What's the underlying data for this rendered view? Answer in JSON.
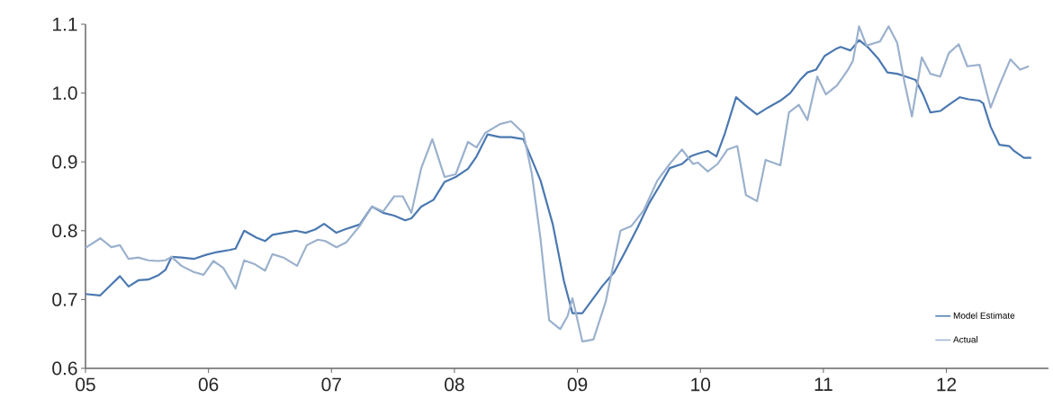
{
  "chart_data": {
    "type": "line",
    "xlim": [
      2005,
      2012.83
    ],
    "ylim": [
      0.6,
      1.1
    ],
    "xticks": [
      {
        "value": 2005,
        "label": "05"
      },
      {
        "value": 2006,
        "label": "06"
      },
      {
        "value": 2007,
        "label": "07"
      },
      {
        "value": 2008,
        "label": "08"
      },
      {
        "value": 2009,
        "label": "09"
      },
      {
        "value": 2010,
        "label": "10"
      },
      {
        "value": 2011,
        "label": "11"
      },
      {
        "value": 2012,
        "label": "12"
      }
    ],
    "yticks": [
      0.6,
      0.7,
      0.8,
      0.9,
      {
        "value": 1.0,
        "label": "1.0"
      },
      1.1
    ],
    "grid": false,
    "legend": "bottom right",
    "marker": "none",
    "line_style": "solid",
    "series": [
      {
        "name": "Model Estimate",
        "color": "#4a78b0",
        "x": [
          2005.0,
          2005.12,
          2005.2,
          2005.28,
          2005.35,
          2005.43,
          2005.51,
          2005.59,
          2005.65,
          2005.7,
          2005.78,
          2005.88,
          2005.98,
          2006.07,
          2006.17,
          2006.22,
          2006.29,
          2006.39,
          2006.46,
          2006.52,
          2006.61,
          2006.71,
          2006.79,
          2006.87,
          2006.94,
          2007.04,
          2007.11,
          2007.23,
          2007.33,
          2007.42,
          2007.51,
          2007.6,
          2007.65,
          2007.73,
          2007.83,
          2007.92,
          2008.01,
          2008.11,
          2008.18,
          2008.27,
          2008.37,
          2008.46,
          2008.56,
          2008.63,
          2008.7,
          2008.8,
          2008.89,
          2008.96,
          2009.04,
          2009.11,
          2009.2,
          2009.3,
          2009.39,
          2009.49,
          2009.58,
          2009.68,
          2009.75,
          2009.85,
          2009.92,
          2009.98,
          2010.06,
          2010.13,
          2010.2,
          2010.29,
          2010.36,
          2010.46,
          2010.55,
          2010.65,
          2010.73,
          2010.81,
          2010.87,
          2010.94,
          2011.01,
          2011.1,
          2011.14,
          2011.22,
          2011.29,
          2011.36,
          2011.45,
          2011.52,
          2011.6,
          2011.67,
          2011.75,
          2011.81,
          2011.87,
          2011.95,
          2012.02,
          2012.11,
          2012.18,
          2012.27,
          2012.3,
          2012.36,
          2012.43,
          2012.51,
          2012.55,
          2012.63,
          2012.69
        ],
        "values": [
          0.708,
          0.706,
          0.72,
          0.734,
          0.719,
          0.728,
          0.729,
          0.735,
          0.743,
          0.762,
          0.761,
          0.759,
          0.765,
          0.769,
          0.772,
          0.774,
          0.8,
          0.79,
          0.785,
          0.794,
          0.797,
          0.8,
          0.797,
          0.802,
          0.81,
          0.797,
          0.802,
          0.809,
          0.835,
          0.826,
          0.822,
          0.815,
          0.818,
          0.835,
          0.845,
          0.871,
          0.878,
          0.89,
          0.908,
          0.94,
          0.936,
          0.936,
          0.933,
          0.903,
          0.873,
          0.809,
          0.727,
          0.68,
          0.68,
          0.697,
          0.719,
          0.74,
          0.77,
          0.805,
          0.839,
          0.869,
          0.891,
          0.897,
          0.908,
          0.912,
          0.916,
          0.908,
          0.942,
          0.994,
          0.983,
          0.969,
          0.979,
          0.989,
          1.0,
          1.019,
          1.03,
          1.034,
          1.054,
          1.064,
          1.067,
          1.062,
          1.077,
          1.067,
          1.049,
          1.03,
          1.028,
          1.024,
          1.019,
          0.998,
          0.972,
          0.974,
          0.983,
          0.994,
          0.991,
          0.989,
          0.985,
          0.951,
          0.925,
          0.923,
          0.916,
          0.906,
          0.906
        ]
      },
      {
        "name": "Actual",
        "color": "#9bb1cd",
        "x": [
          2005.0,
          2005.12,
          2005.21,
          2005.28,
          2005.35,
          2005.43,
          2005.51,
          2005.59,
          2005.65,
          2005.7,
          2005.78,
          2005.88,
          2005.96,
          2006.04,
          2006.12,
          2006.22,
          2006.29,
          2006.38,
          2006.46,
          2006.52,
          2006.61,
          2006.72,
          2006.8,
          2006.89,
          2006.95,
          2007.04,
          2007.12,
          2007.23,
          2007.33,
          2007.42,
          2007.51,
          2007.58,
          2007.65,
          2007.73,
          2007.82,
          2007.92,
          2008.01,
          2008.11,
          2008.18,
          2008.25,
          2008.37,
          2008.46,
          2008.56,
          2008.63,
          2008.7,
          2008.77,
          2008.86,
          2008.92,
          2008.96,
          2009.04,
          2009.13,
          2009.23,
          2009.35,
          2009.44,
          2009.54,
          2009.65,
          2009.75,
          2009.85,
          2009.94,
          2009.98,
          2010.06,
          2010.14,
          2010.22,
          2010.3,
          2010.37,
          2010.46,
          2010.53,
          2010.65,
          2010.72,
          2010.8,
          2010.87,
          2010.95,
          2011.02,
          2011.11,
          2011.2,
          2011.24,
          2011.29,
          2011.35,
          2011.46,
          2011.53,
          2011.6,
          2011.66,
          2011.72,
          2011.8,
          2011.87,
          2011.95,
          2012.02,
          2012.1,
          2012.17,
          2012.27,
          2012.31,
          2012.36,
          2012.43,
          2012.52,
          2012.6,
          2012.67
        ],
        "values": [
          0.775,
          0.789,
          0.776,
          0.779,
          0.759,
          0.761,
          0.757,
          0.756,
          0.757,
          0.762,
          0.749,
          0.74,
          0.736,
          0.756,
          0.746,
          0.716,
          0.757,
          0.751,
          0.742,
          0.766,
          0.761,
          0.749,
          0.779,
          0.787,
          0.785,
          0.776,
          0.783,
          0.807,
          0.835,
          0.828,
          0.85,
          0.85,
          0.826,
          0.891,
          0.933,
          0.878,
          0.882,
          0.929,
          0.921,
          0.942,
          0.955,
          0.959,
          0.942,
          0.882,
          0.788,
          0.67,
          0.657,
          0.676,
          0.702,
          0.639,
          0.642,
          0.697,
          0.8,
          0.807,
          0.83,
          0.873,
          0.897,
          0.918,
          0.897,
          0.899,
          0.886,
          0.897,
          0.918,
          0.923,
          0.852,
          0.843,
          0.903,
          0.895,
          0.972,
          0.983,
          0.961,
          1.024,
          0.998,
          1.011,
          1.034,
          1.047,
          1.097,
          1.069,
          1.075,
          1.097,
          1.073,
          1.015,
          0.966,
          1.052,
          1.028,
          1.024,
          1.058,
          1.071,
          1.039,
          1.041,
          1.013,
          0.979,
          1.011,
          1.049,
          1.034,
          1.039
        ]
      }
    ]
  }
}
